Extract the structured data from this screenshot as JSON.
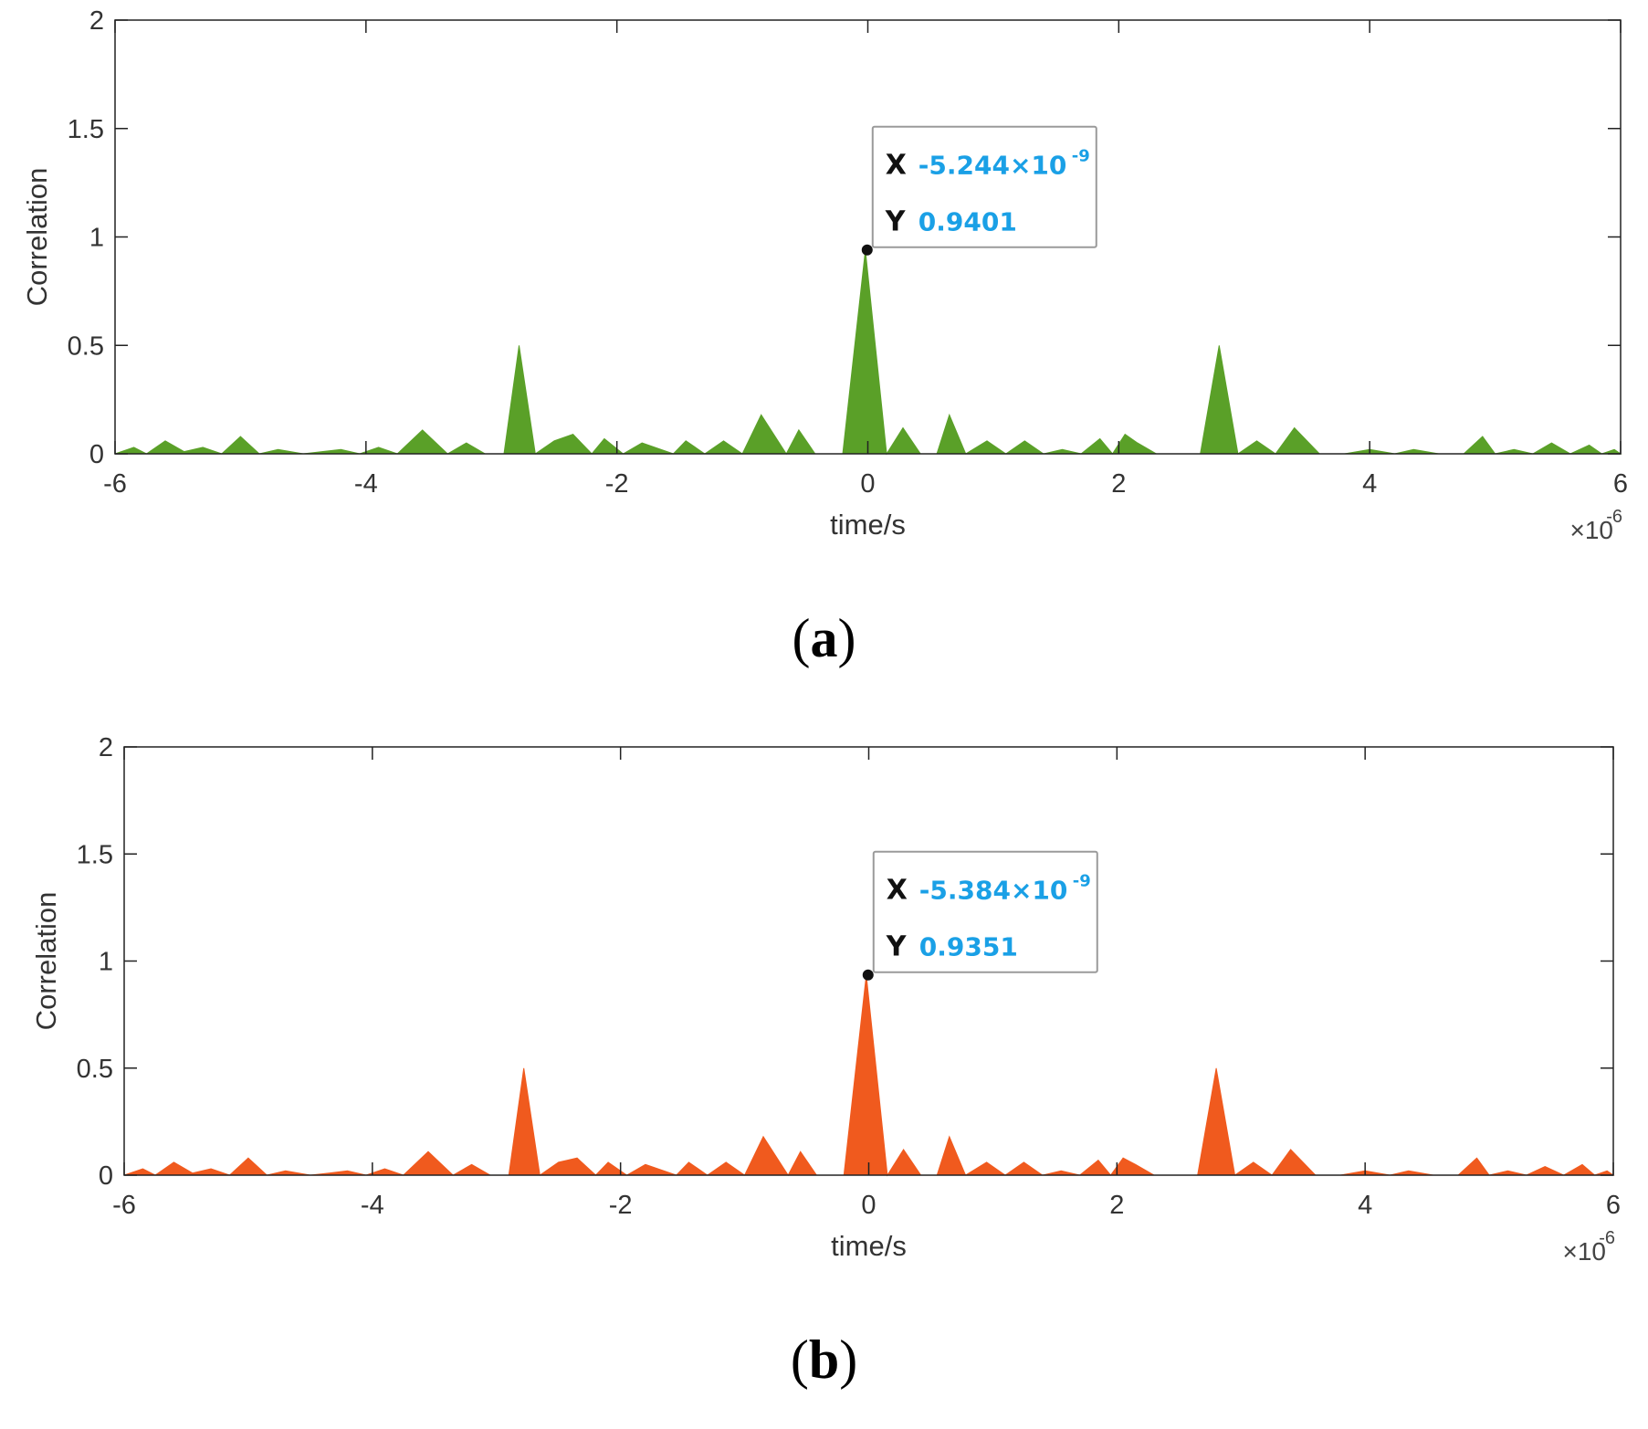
{
  "figure": {
    "panel_labels": [
      {
        "open": "(",
        "letter": "a",
        "close": ")"
      },
      {
        "open": "(",
        "letter": "b",
        "close": ")"
      }
    ]
  },
  "chart_data": [
    {
      "type": "area",
      "panel": "a",
      "xlabel": "time/s",
      "ylabel": "Correlation",
      "x_exponent_label": {
        "base": "×10",
        "exp": "-6"
      },
      "xlim": [
        -6,
        6
      ],
      "ylim": [
        0,
        2
      ],
      "xticks": [
        "-6",
        "-4",
        "-2",
        "0",
        "2",
        "4",
        "6"
      ],
      "yticks": [
        "0",
        "0.5",
        "1",
        "1.5",
        "2"
      ],
      "grid": false,
      "fill_color": "#5aa028",
      "x": [
        -6.0,
        -5.85,
        -5.75,
        -5.6,
        -5.45,
        -5.3,
        -5.15,
        -5.0,
        -4.85,
        -4.7,
        -4.5,
        -4.35,
        -4.2,
        -4.05,
        -3.9,
        -3.75,
        -3.55,
        -3.35,
        -3.2,
        -3.05,
        -2.9,
        -2.78,
        -2.65,
        -2.5,
        -2.35,
        -2.2,
        -2.1,
        -1.95,
        -1.8,
        -1.55,
        -1.45,
        -1.3,
        -1.15,
        -1.0,
        -0.85,
        -0.65,
        -0.55,
        -0.42,
        -0.3,
        -0.2,
        -0.02,
        0.15,
        0.28,
        0.42,
        0.55,
        0.65,
        0.78,
        0.95,
        1.1,
        1.25,
        1.4,
        1.55,
        1.7,
        1.85,
        1.95,
        2.05,
        2.15,
        2.3,
        2.45,
        2.65,
        2.8,
        2.95,
        3.1,
        3.25,
        3.4,
        3.6,
        3.8,
        4.0,
        4.2,
        4.35,
        4.55,
        4.75,
        4.9,
        5.0,
        5.15,
        5.3,
        5.45,
        5.6,
        5.75,
        5.85,
        5.95,
        6.0
      ],
      "y": [
        0.0,
        0.03,
        0.0,
        0.06,
        0.01,
        0.03,
        0.0,
        0.08,
        0.0,
        0.02,
        0.0,
        0.01,
        0.02,
        0.0,
        0.03,
        0.0,
        0.11,
        0.0,
        0.05,
        0.0,
        0.0,
        0.5,
        0.0,
        0.06,
        0.09,
        0.0,
        0.07,
        0.0,
        0.05,
        0.0,
        0.06,
        0.0,
        0.06,
        0.0,
        0.18,
        0.0,
        0.11,
        0.0,
        0.0,
        0.0,
        0.94,
        0.0,
        0.12,
        0.0,
        0.0,
        0.18,
        0.0,
        0.06,
        0.0,
        0.06,
        0.0,
        0.02,
        0.0,
        0.07,
        0.0,
        0.09,
        0.05,
        0.0,
        0.0,
        0.0,
        0.5,
        0.0,
        0.06,
        0.0,
        0.12,
        0.0,
        0.0,
        0.02,
        0.0,
        0.02,
        0.0,
        0.0,
        0.08,
        0.0,
        0.02,
        0.0,
        0.05,
        0.0,
        0.04,
        0.0,
        0.02,
        0.0
      ],
      "datatip": {
        "x_prefix": "X",
        "x_value": "-5.244×10",
        "x_exp": "-9",
        "y_prefix": "Y",
        "y_value": "0.9401",
        "point_x": -0.005244,
        "point_y": 0.9401
      }
    },
    {
      "type": "area",
      "panel": "b",
      "xlabel": "time/s",
      "ylabel": "Correlation",
      "x_exponent_label": {
        "base": "×10",
        "exp": "-6"
      },
      "xlim": [
        -6,
        6
      ],
      "ylim": [
        0,
        2
      ],
      "xticks": [
        "-6",
        "-4",
        "-2",
        "0",
        "2",
        "4",
        "6"
      ],
      "yticks": [
        "0",
        "0.5",
        "1",
        "1.5",
        "2"
      ],
      "grid": false,
      "fill_color": "#f05a1e",
      "x": [
        -6.0,
        -5.85,
        -5.75,
        -5.6,
        -5.45,
        -5.3,
        -5.15,
        -5.0,
        -4.85,
        -4.7,
        -4.5,
        -4.35,
        -4.2,
        -4.05,
        -3.9,
        -3.75,
        -3.55,
        -3.35,
        -3.2,
        -3.05,
        -2.9,
        -2.78,
        -2.65,
        -2.5,
        -2.35,
        -2.2,
        -2.1,
        -1.95,
        -1.8,
        -1.55,
        -1.45,
        -1.3,
        -1.15,
        -1.0,
        -0.85,
        -0.65,
        -0.55,
        -0.42,
        -0.3,
        -0.2,
        -0.02,
        0.15,
        0.28,
        0.42,
        0.55,
        0.65,
        0.78,
        0.95,
        1.1,
        1.25,
        1.4,
        1.55,
        1.7,
        1.85,
        1.95,
        2.05,
        2.15,
        2.3,
        2.45,
        2.65,
        2.8,
        2.95,
        3.1,
        3.25,
        3.4,
        3.6,
        3.8,
        4.0,
        4.2,
        4.35,
        4.55,
        4.75,
        4.9,
        5.0,
        5.15,
        5.3,
        5.45,
        5.6,
        5.75,
        5.85,
        5.95,
        6.0
      ],
      "y": [
        0.0,
        0.03,
        0.0,
        0.06,
        0.01,
        0.03,
        0.0,
        0.08,
        0.0,
        0.02,
        0.0,
        0.01,
        0.02,
        0.0,
        0.03,
        0.0,
        0.11,
        0.0,
        0.05,
        0.0,
        0.0,
        0.5,
        0.0,
        0.06,
        0.08,
        0.0,
        0.06,
        0.0,
        0.05,
        0.0,
        0.06,
        0.0,
        0.06,
        0.0,
        0.18,
        0.0,
        0.11,
        0.0,
        0.0,
        0.0,
        0.935,
        0.0,
        0.12,
        0.0,
        0.0,
        0.18,
        0.0,
        0.06,
        0.0,
        0.06,
        0.0,
        0.02,
        0.0,
        0.07,
        0.0,
        0.08,
        0.05,
        0.0,
        0.0,
        0.0,
        0.5,
        0.0,
        0.06,
        0.0,
        0.12,
        0.0,
        0.0,
        0.02,
        0.0,
        0.02,
        0.0,
        0.0,
        0.08,
        0.0,
        0.02,
        0.0,
        0.04,
        0.0,
        0.05,
        0.0,
        0.02,
        0.0
      ],
      "datatip": {
        "x_prefix": "X",
        "x_value": "-5.384×10",
        "x_exp": "-9",
        "y_prefix": "Y",
        "y_value": "0.9351",
        "point_x": -0.005384,
        "point_y": 0.9351
      }
    }
  ]
}
